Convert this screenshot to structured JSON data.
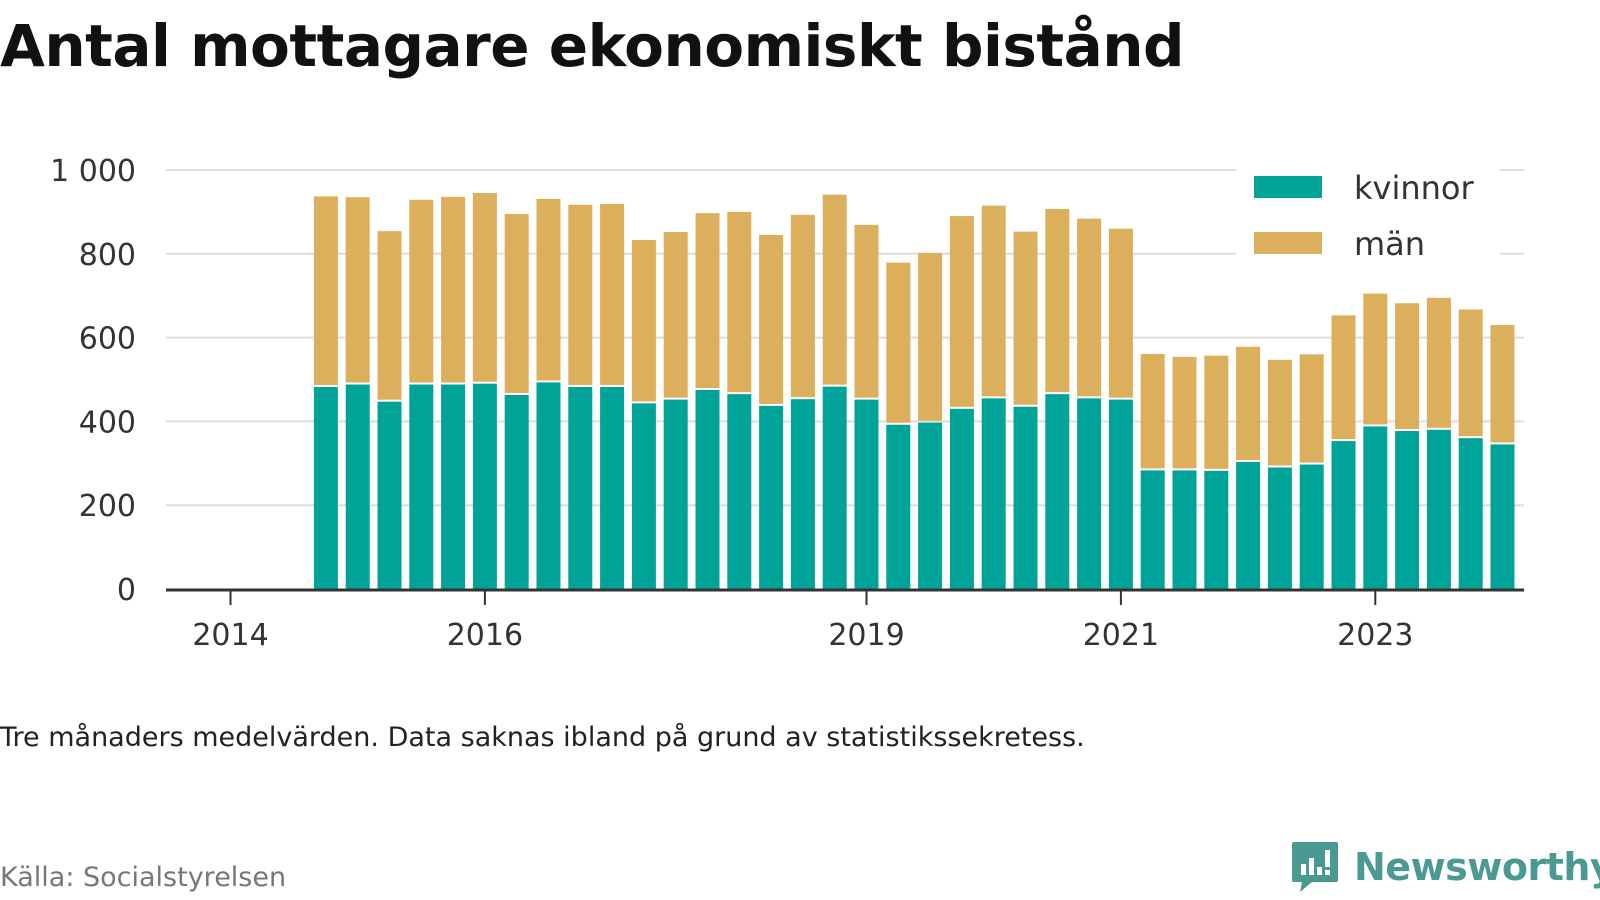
{
  "title": "Antal mottagare ekonomiskt bistånd",
  "note": "Tre månaders medelvärden. Data saknas ibland på grund av statistikssekretess.",
  "source": "Källa: Socialstyrelsen",
  "brand": "Newsworthy",
  "colors": {
    "kvinnor": "#00a398",
    "man": "#dbaf5b",
    "grid": "#dddddd",
    "axis": "#333333",
    "brand": "#4a9a93"
  },
  "chart_data": {
    "type": "bar",
    "stacked": true,
    "x_ticks": [
      {
        "label": "2014",
        "position": 0
      },
      {
        "label": "2016",
        "position": 8
      },
      {
        "label": "2019",
        "position": 20
      },
      {
        "label": "2021",
        "position": 28
      },
      {
        "label": "2023",
        "position": 36
      }
    ],
    "x": [
      3,
      4,
      5,
      6,
      7,
      8,
      9,
      10,
      11,
      12,
      13,
      14,
      15,
      16,
      17,
      18,
      19,
      20,
      21,
      22,
      23,
      24,
      25,
      26,
      27,
      28,
      29,
      30,
      31,
      32,
      33,
      34,
      35,
      36,
      37,
      38,
      39,
      40
    ],
    "y_ticks": [
      "0",
      "200",
      "400",
      "600",
      "800",
      "1 000"
    ],
    "ylim": [
      0,
      1000
    ],
    "grid": true,
    "legend_position": "top-right",
    "series": [
      {
        "name": "kvinnor",
        "values": [
          482,
          488,
          447,
          488,
          488,
          490,
          463,
          493,
          482,
          482,
          443,
          452,
          475,
          465,
          437,
          453,
          483,
          452,
          392,
          397,
          430,
          455,
          435,
          465,
          455,
          452,
          283,
          283,
          282,
          303,
          290,
          297,
          353,
          388,
          377,
          380,
          360,
          345
        ]
      },
      {
        "name": "män",
        "values": [
          455,
          447,
          407,
          441,
          448,
          455,
          432,
          438,
          435,
          437,
          390,
          400,
          422,
          435,
          408,
          440,
          458,
          417,
          387,
          405,
          460,
          460,
          418,
          442,
          429,
          408,
          278,
          271,
          275,
          275,
          257,
          263,
          300,
          317,
          305,
          315,
          307,
          285
        ]
      }
    ]
  }
}
